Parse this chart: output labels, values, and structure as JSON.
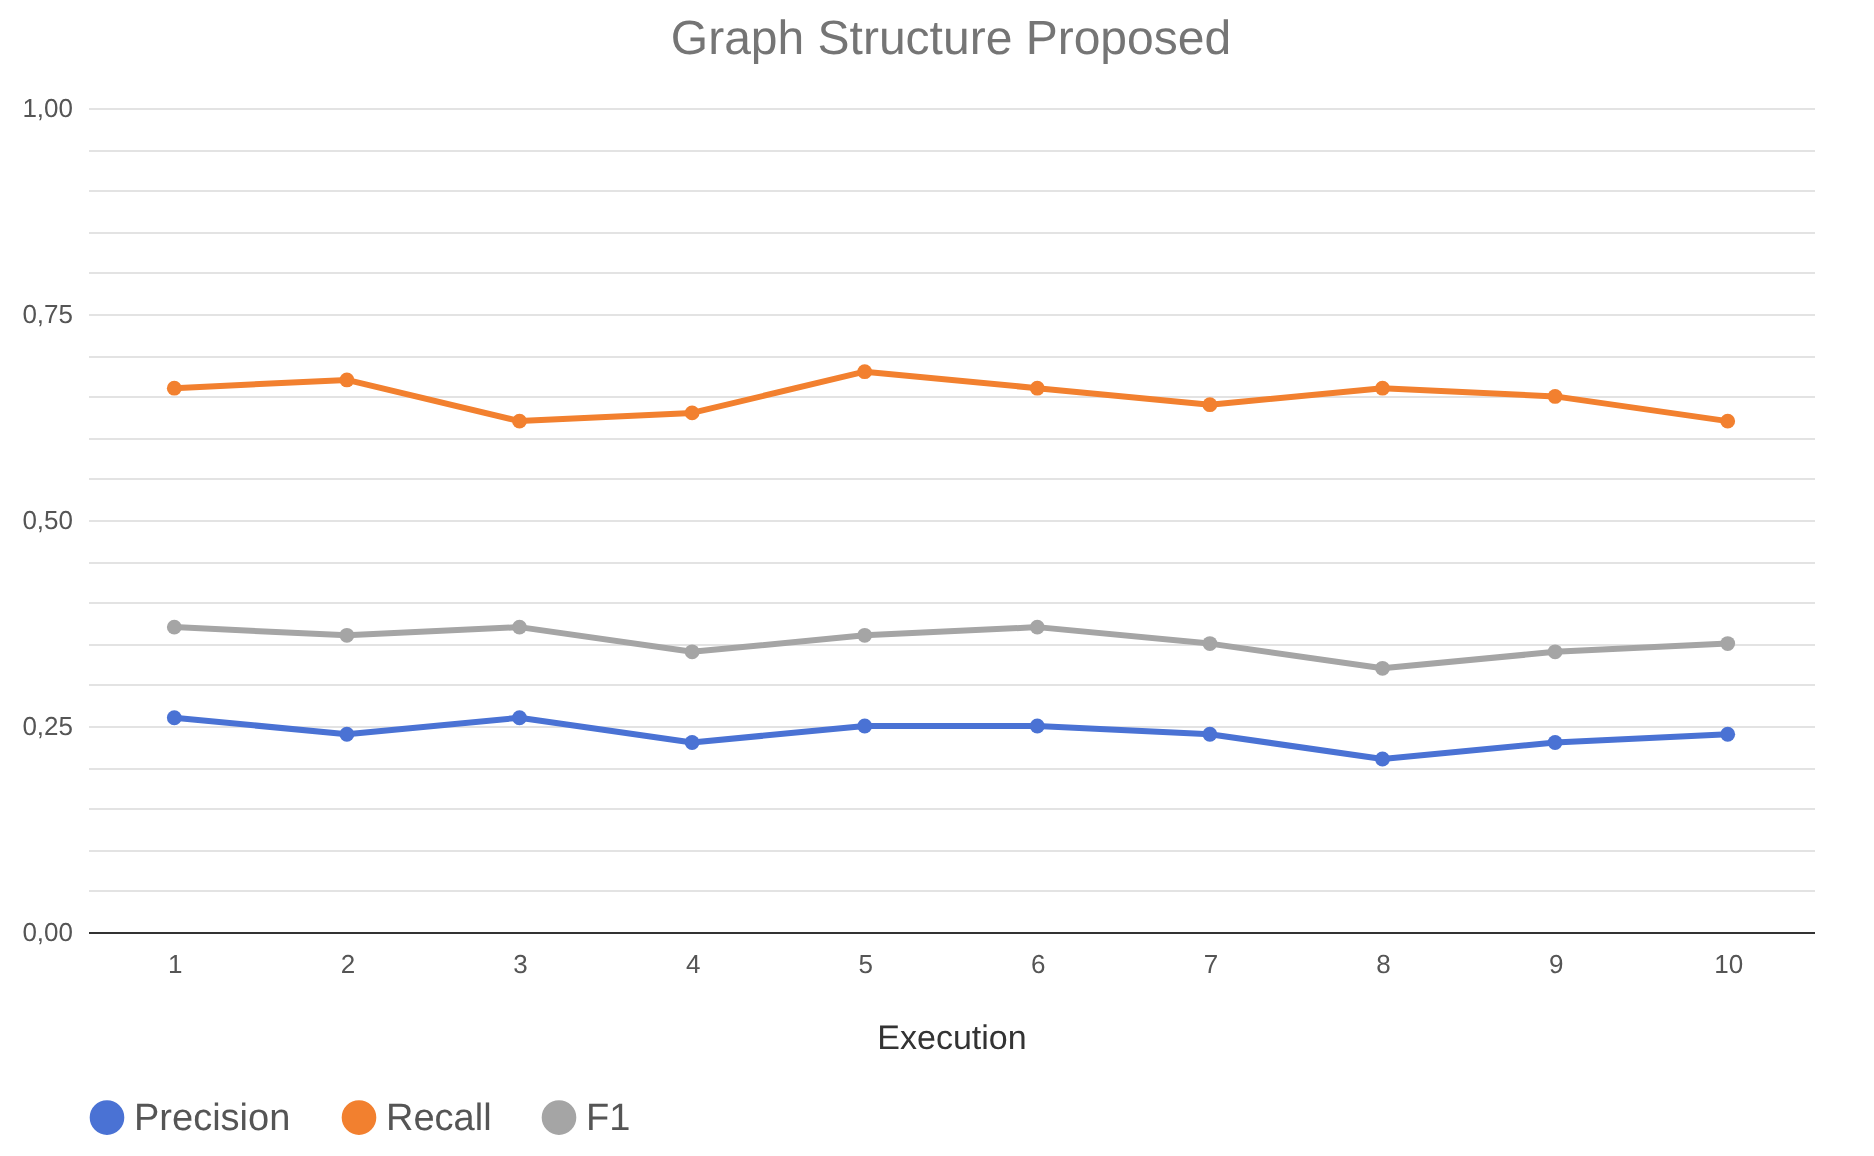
{
  "chart_data": {
    "type": "line",
    "title": "Graph Structure Proposed",
    "xlabel": "Execution",
    "categories": [
      "1",
      "2",
      "3",
      "4",
      "5",
      "6",
      "7",
      "8",
      "9",
      "10"
    ],
    "series": [
      {
        "name": "Precision",
        "color": "#4a72d4",
        "values": [
          0.26,
          0.24,
          0.26,
          0.23,
          0.25,
          0.25,
          0.24,
          0.21,
          0.23,
          0.24
        ]
      },
      {
        "name": "Recall",
        "color": "#f2802f",
        "values": [
          0.66,
          0.67,
          0.62,
          0.63,
          0.68,
          0.66,
          0.64,
          0.66,
          0.65,
          0.62
        ]
      },
      {
        "name": "F1",
        "color": "#a5a5a5",
        "values": [
          0.37,
          0.36,
          0.37,
          0.34,
          0.36,
          0.37,
          0.35,
          0.32,
          0.34,
          0.35
        ]
      }
    ],
    "ylim": [
      0,
      1
    ],
    "yticks": [
      {
        "value": 0,
        "label": "0,00"
      },
      {
        "value": 0.05,
        "label": null
      },
      {
        "value": 0.1,
        "label": null
      },
      {
        "value": 0.15,
        "label": null
      },
      {
        "value": 0.2,
        "label": null
      },
      {
        "value": 0.25,
        "label": "0,25"
      },
      {
        "value": 0.3,
        "label": null
      },
      {
        "value": 0.35,
        "label": null
      },
      {
        "value": 0.4,
        "label": null
      },
      {
        "value": 0.45,
        "label": null
      },
      {
        "value": 0.5,
        "label": "0,50"
      },
      {
        "value": 0.55,
        "label": null
      },
      {
        "value": 0.6,
        "label": null
      },
      {
        "value": 0.65,
        "label": null
      },
      {
        "value": 0.7,
        "label": null
      },
      {
        "value": 0.75,
        "label": "0,75"
      },
      {
        "value": 0.8,
        "label": null
      },
      {
        "value": 0.85,
        "label": null
      },
      {
        "value": 0.9,
        "label": null
      },
      {
        "value": 0.95,
        "label": null
      },
      {
        "value": 1,
        "label": "1,00"
      }
    ],
    "grid": "y",
    "legend": "bottom",
    "marker": "circle",
    "line_style": "solid"
  }
}
